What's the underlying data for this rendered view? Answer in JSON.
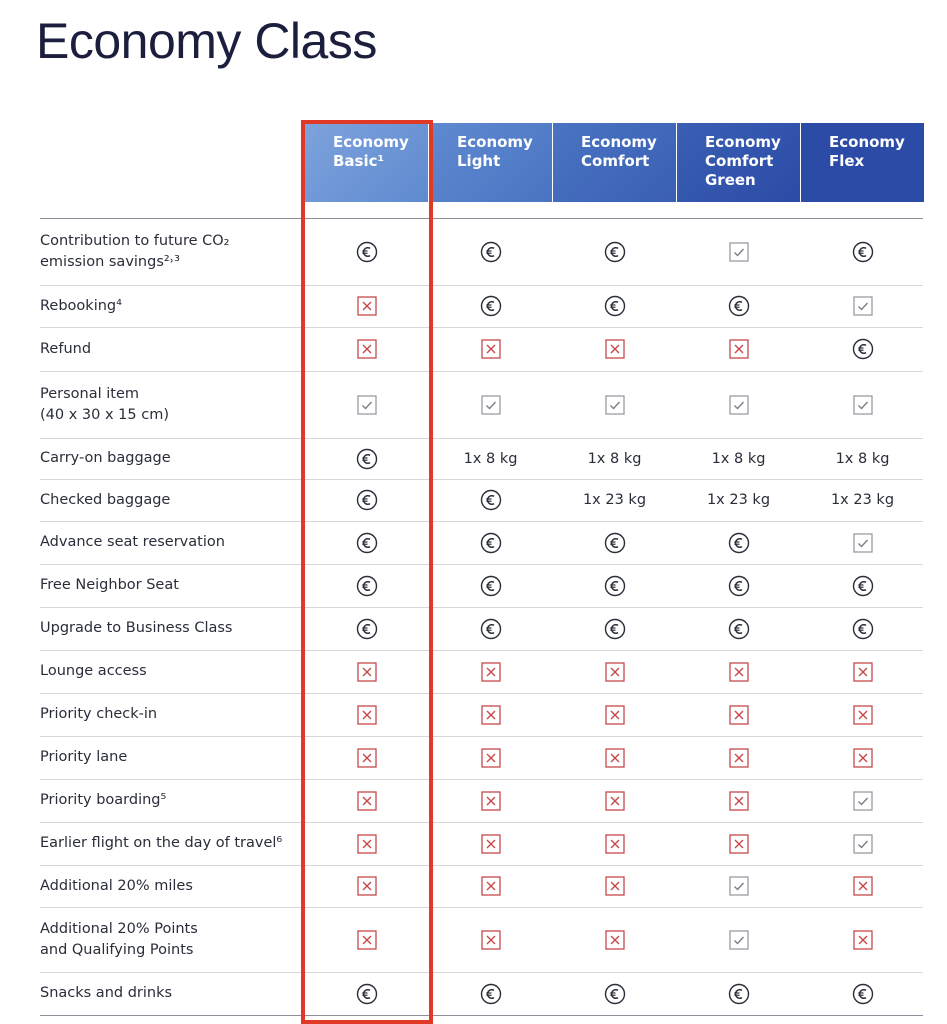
{
  "header": {
    "title": "Economy Class"
  },
  "table": {
    "columns": [
      "Economy\nBasic¹",
      "Economy\nLight",
      "Economy\nComfort",
      "Economy\nComfort\nGreen",
      "Economy\nFlex"
    ],
    "highlight_column": 0,
    "rows": [
      {
        "label": "Contribution to future CO₂\nemission savings²˒³",
        "cells": [
          {
            "icon": "euro"
          },
          {
            "icon": "euro"
          },
          {
            "icon": "euro"
          },
          {
            "icon": "check"
          },
          {
            "icon": "euro"
          }
        ]
      },
      {
        "label": "Rebooking⁴",
        "cells": [
          {
            "icon": "cross"
          },
          {
            "icon": "euro"
          },
          {
            "icon": "euro"
          },
          {
            "icon": "euro"
          },
          {
            "icon": "check"
          }
        ]
      },
      {
        "label": "Refund",
        "cells": [
          {
            "icon": "cross"
          },
          {
            "icon": "cross"
          },
          {
            "icon": "cross"
          },
          {
            "icon": "cross"
          },
          {
            "icon": "euro"
          }
        ]
      },
      {
        "label": "Personal item\n(40 x 30 x 15 cm)",
        "cells": [
          {
            "icon": "check"
          },
          {
            "icon": "check"
          },
          {
            "icon": "check"
          },
          {
            "icon": "check"
          },
          {
            "icon": "check"
          }
        ]
      },
      {
        "label": "Carry-on baggage",
        "cells": [
          {
            "icon": "euro"
          },
          "1x 8 kg",
          "1x 8 kg",
          "1x 8 kg",
          "1x 8 kg"
        ]
      },
      {
        "label": "Checked baggage",
        "cells": [
          {
            "icon": "euro"
          },
          {
            "icon": "euro"
          },
          "1x 23 kg",
          "1x 23 kg",
          "1x 23 kg"
        ]
      },
      {
        "label": "Advance seat reservation",
        "cells": [
          {
            "icon": "euro"
          },
          {
            "icon": "euro"
          },
          {
            "icon": "euro"
          },
          {
            "icon": "euro"
          },
          {
            "icon": "check"
          }
        ]
      },
      {
        "label": "Free Neighbor Seat",
        "cells": [
          {
            "icon": "euro"
          },
          {
            "icon": "euro"
          },
          {
            "icon": "euro"
          },
          {
            "icon": "euro"
          },
          {
            "icon": "euro"
          }
        ]
      },
      {
        "label": "Upgrade to Business Class",
        "cells": [
          {
            "icon": "euro"
          },
          {
            "icon": "euro"
          },
          {
            "icon": "euro"
          },
          {
            "icon": "euro"
          },
          {
            "icon": "euro"
          }
        ]
      },
      {
        "label": "Lounge access",
        "cells": [
          {
            "icon": "cross"
          },
          {
            "icon": "cross"
          },
          {
            "icon": "cross"
          },
          {
            "icon": "cross"
          },
          {
            "icon": "cross"
          }
        ]
      },
      {
        "label": "Priority check-in",
        "cells": [
          {
            "icon": "cross"
          },
          {
            "icon": "cross"
          },
          {
            "icon": "cross"
          },
          {
            "icon": "cross"
          },
          {
            "icon": "cross"
          }
        ]
      },
      {
        "label": "Priority lane",
        "cells": [
          {
            "icon": "cross"
          },
          {
            "icon": "cross"
          },
          {
            "icon": "cross"
          },
          {
            "icon": "cross"
          },
          {
            "icon": "cross"
          }
        ]
      },
      {
        "label": "Priority boarding⁵",
        "cells": [
          {
            "icon": "cross"
          },
          {
            "icon": "cross"
          },
          {
            "icon": "cross"
          },
          {
            "icon": "cross"
          },
          {
            "icon": "check"
          }
        ]
      },
      {
        "label": "Earlier flight on the day of travel⁶",
        "cells": [
          {
            "icon": "cross"
          },
          {
            "icon": "cross"
          },
          {
            "icon": "cross"
          },
          {
            "icon": "cross"
          },
          {
            "icon": "check"
          }
        ]
      },
      {
        "label": "Additional 20% miles",
        "cells": [
          {
            "icon": "cross"
          },
          {
            "icon": "cross"
          },
          {
            "icon": "cross"
          },
          {
            "icon": "check"
          },
          {
            "icon": "cross"
          }
        ]
      },
      {
        "label": "Additional 20% Points\nand Qualifying Points",
        "cells": [
          {
            "icon": "cross"
          },
          {
            "icon": "cross"
          },
          {
            "icon": "cross"
          },
          {
            "icon": "check"
          },
          {
            "icon": "cross"
          }
        ]
      },
      {
        "label": "Snacks and drinks",
        "cells": [
          {
            "icon": "euro"
          },
          {
            "icon": "euro"
          },
          {
            "icon": "euro"
          },
          {
            "icon": "euro"
          },
          {
            "icon": "euro"
          }
        ]
      }
    ]
  }
}
